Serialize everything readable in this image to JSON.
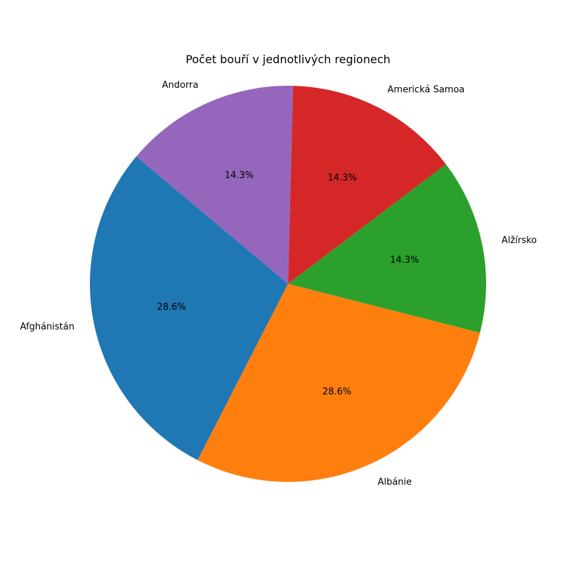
{
  "chart_data": {
    "type": "pie",
    "title": "Počet bouří v jednotlivých regionech",
    "categories": [
      "Afghánistán",
      "Albánie",
      "Alžírsko",
      "Americká Samoa",
      "Andorra"
    ],
    "values": [
      2,
      2,
      1,
      1,
      1
    ],
    "percent_labels": [
      "28.6%",
      "28.6%",
      "14.3%",
      "14.3%",
      "14.3%"
    ],
    "colors": [
      "#1f77b4",
      "#ff7f0e",
      "#2ca02c",
      "#d62728",
      "#9467bd"
    ],
    "start_angle_deg": 140,
    "direction": "counterclockwise"
  }
}
